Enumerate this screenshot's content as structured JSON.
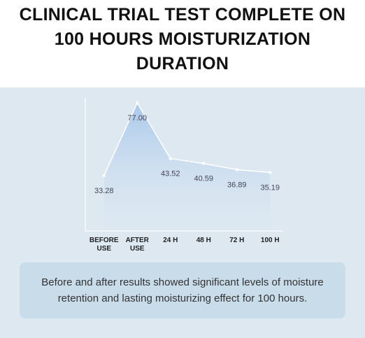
{
  "chart_data": {
    "type": "area",
    "title": "CLINICAL TRIAL TEST COMPLETE ON 100 HOURS MOISTURIZATION DURATION",
    "categories": [
      "BEFORE USE",
      "AFTER USE",
      "24 H",
      "48 H",
      "72 H",
      "100 H"
    ],
    "values": [
      33.28,
      77,
      43.52,
      40.59,
      36.89,
      35.19
    ],
    "value_labels": [
      "33.28",
      "77.00",
      "43.52",
      "40.59",
      "36.89",
      "35.19"
    ],
    "color": "#a9c8eb",
    "ylim": [
      0,
      80
    ],
    "caption": "Before and after results showed significant levels of moisture retention and  lasting moisturizing effect for 100 hours."
  }
}
